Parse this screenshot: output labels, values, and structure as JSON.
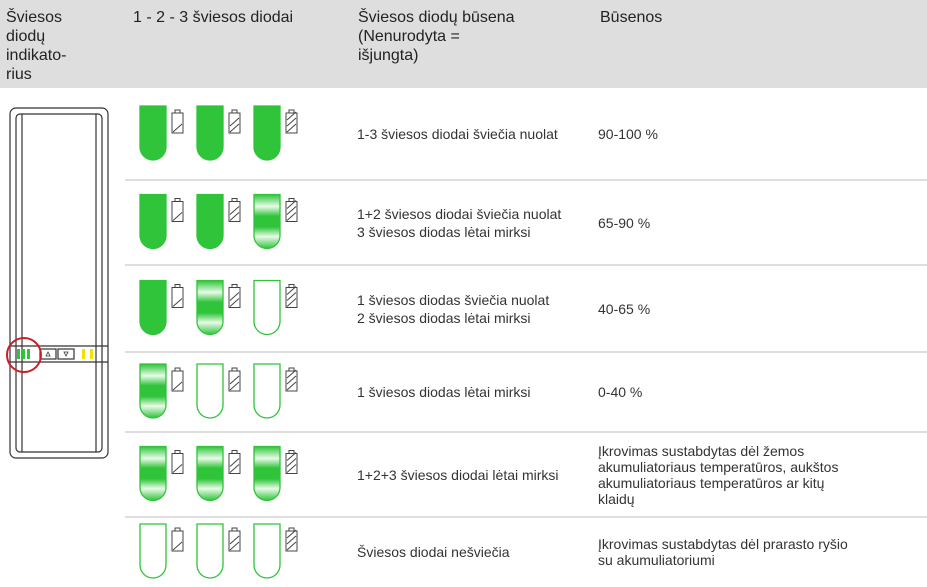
{
  "header": {
    "indicator": "Šviesos diodų indikato-rius",
    "leds": "1 - 2 - 3 šviesos diodai",
    "state": [
      "Šviesos diodų būsena",
      "(Nenurodyta =",
      "išjungta)"
    ],
    "status": "Būsenos"
  },
  "rows": [
    {
      "state": [
        "1-3 šviesos diodai šviečia nuolat"
      ],
      "status": "90-100 %"
    },
    {
      "state": [
        "1+2 šviesos diodai šviečia nuolat",
        "3 šviesos diodas lėtai mirksi"
      ],
      "status": "65-90 %"
    },
    {
      "state": [
        "1 šviesos diodas šviečia nuolat",
        "2 šviesos diodas lėtai mirksi"
      ],
      "status": "40-65 %"
    },
    {
      "state": [
        "1 šviesos diodas lėtai mirksi"
      ],
      "status": "0-40 %"
    },
    {
      "state": [
        "1+2+3 šviesos diodai lėtai mirksi"
      ],
      "status": "Įkrovimas sustabdytas dėl žemos akumuliatoriaus temperatūros, aukštos akumuliatoriaus temperatūros ar kitų klaidų"
    },
    {
      "state": [
        "Šviesos diodai nešviečia"
      ],
      "status": "Įkrovimas sustabdytas dėl prarasto ryšio su akumuliatoriumi"
    }
  ]
}
